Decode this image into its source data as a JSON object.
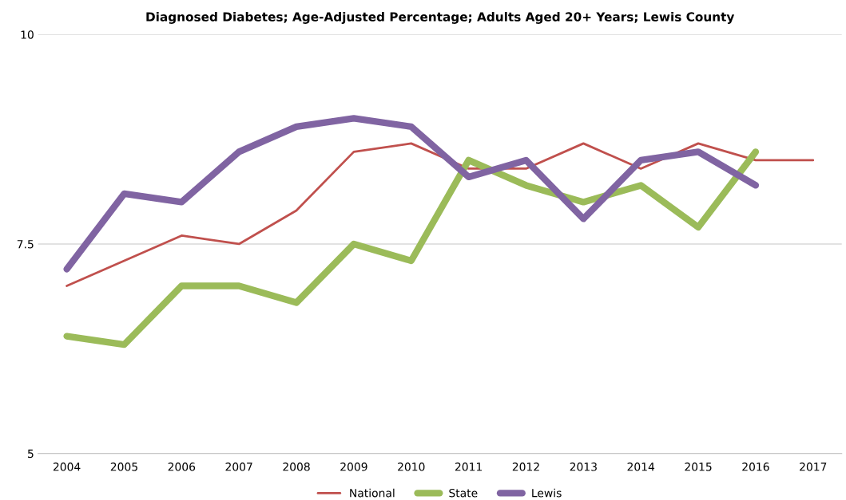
{
  "chart_data": {
    "type": "line",
    "title": "Diagnosed Diabetes; Age-Adjusted Percentage; Adults Aged 20+ Years; Lewis County",
    "categories": [
      "2004",
      "2005",
      "2006",
      "2007",
      "2008",
      "2009",
      "2010",
      "2011",
      "2012",
      "2013",
      "2014",
      "2015",
      "2016",
      "2017"
    ],
    "series": [
      {
        "name": "National",
        "color": "#c0504d",
        "values": [
          7.0,
          7.3,
          7.6,
          7.5,
          7.9,
          8.6,
          8.7,
          8.4,
          8.4,
          8.7,
          8.4,
          8.7,
          8.5,
          8.5
        ]
      },
      {
        "name": "State",
        "color": "#9bbb59",
        "values": [
          6.4,
          6.3,
          7.0,
          7.0,
          6.8,
          7.5,
          7.3,
          8.5,
          8.2,
          8.0,
          8.2,
          7.7,
          8.6,
          null
        ]
      },
      {
        "name": "Lewis",
        "color": "#8064a2",
        "values": [
          7.2,
          8.1,
          8.0,
          8.6,
          8.9,
          9.0,
          8.9,
          8.3,
          8.5,
          7.8,
          8.5,
          8.6,
          8.2,
          null
        ]
      }
    ],
    "ylim": [
      5,
      10
    ],
    "yticks": [
      5,
      7.5,
      10
    ],
    "grid": "y",
    "legend": "bottom",
    "marker": "none",
    "line_style": "solid"
  }
}
